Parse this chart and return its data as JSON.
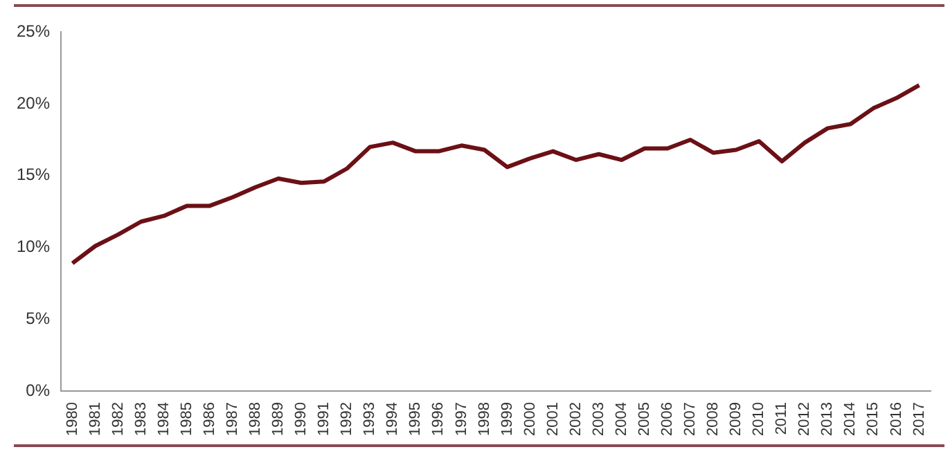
{
  "chart_data": {
    "type": "line",
    "categories": [
      "1980",
      "1981",
      "1982",
      "1983",
      "1984",
      "1985",
      "1986",
      "1987",
      "1988",
      "1989",
      "1990",
      "1991",
      "1992",
      "1993",
      "1994",
      "1995",
      "1996",
      "1997",
      "1998",
      "1999",
      "2000",
      "2001",
      "2002",
      "2003",
      "2004",
      "2005",
      "2006",
      "2007",
      "2008",
      "2009",
      "2010",
      "2011",
      "2012",
      "2013",
      "2014",
      "2015",
      "2016",
      "2017"
    ],
    "series": [
      {
        "color": "#6b1016",
        "values": [
          8.9,
          10.1,
          10.9,
          11.8,
          12.2,
          12.9,
          12.9,
          13.5,
          14.2,
          14.8,
          14.5,
          14.6,
          15.5,
          17.0,
          17.3,
          16.7,
          16.7,
          17.1,
          16.8,
          15.6,
          16.2,
          16.7,
          16.1,
          16.5,
          16.1,
          16.9,
          16.9,
          17.5,
          16.6,
          16.8,
          17.4,
          16.0,
          17.3,
          18.3,
          18.6,
          19.7,
          20.4,
          21.3
        ]
      }
    ],
    "ylim": [
      0,
      25
    ],
    "yticks": [
      {
        "value": 0,
        "label": "0%"
      },
      {
        "value": 5,
        "label": "5%"
      },
      {
        "value": 10,
        "label": "10%"
      },
      {
        "value": 15,
        "label": "15%"
      },
      {
        "value": 20,
        "label": "20%"
      },
      {
        "value": 25,
        "label": "25%"
      }
    ],
    "grid": false,
    "legend": false,
    "marker": "none",
    "line_style": "solid"
  }
}
